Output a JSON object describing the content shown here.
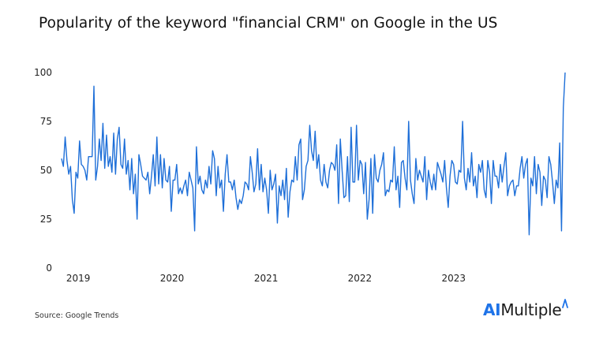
{
  "chart_data": {
    "type": "line",
    "title": "Popularity of the keyword \"financial CRM\" on Google in the US",
    "xlabel": "",
    "ylabel": "",
    "ylim": [
      0,
      100
    ],
    "yticks": [
      0,
      25,
      50,
      75,
      100
    ],
    "xticks": [
      "2019",
      "2020",
      "2021",
      "2022",
      "2023"
    ],
    "x_start": "2018-10-28",
    "x_interval_days": 7,
    "grid": false,
    "legend": "none",
    "series": [
      {
        "color": "#1e6fd8",
        "values": [
          56,
          52,
          67,
          55,
          48,
          52,
          35,
          28,
          49,
          46,
          65,
          53,
          52,
          50,
          45,
          57,
          57,
          57,
          93,
          45,
          52,
          66,
          55,
          74,
          51,
          68,
          52,
          57,
          49,
          69,
          48,
          66,
          72,
          53,
          51,
          66,
          48,
          55,
          40,
          56,
          38,
          48,
          25,
          58,
          53,
          47,
          46,
          45,
          49,
          38,
          47,
          58,
          42,
          67,
          43,
          58,
          41,
          56,
          45,
          44,
          52,
          29,
          45,
          45,
          53,
          38,
          41,
          38,
          42,
          45,
          37,
          49,
          45,
          41,
          19,
          62,
          43,
          47,
          40,
          38,
          45,
          41,
          52,
          43,
          60,
          56,
          37,
          52,
          41,
          45,
          29,
          48,
          58,
          44,
          44,
          40,
          45,
          36,
          30,
          35,
          33,
          37,
          44,
          43,
          40,
          57,
          49,
          39,
          43,
          61,
          40,
          53,
          39,
          46,
          40,
          28,
          50,
          40,
          43,
          48,
          23,
          42,
          37,
          45,
          35,
          51,
          26,
          39,
          45,
          44,
          57,
          45,
          63,
          66,
          35,
          40,
          52,
          55,
          73,
          60,
          55,
          70,
          51,
          58,
          45,
          42,
          53,
          44,
          41,
          50,
          54,
          53,
          50,
          63,
          33,
          66,
          50,
          36,
          37,
          57,
          34,
          72,
          44,
          44,
          73,
          45,
          55,
          53,
          38,
          54,
          25,
          35,
          56,
          28,
          58,
          46,
          44,
          50,
          53,
          59,
          37,
          40,
          39,
          45,
          44,
          62,
          40,
          47,
          31,
          54,
          55,
          46,
          40,
          75,
          45,
          38,
          33,
          56,
          45,
          50,
          47,
          44,
          57,
          35,
          50,
          44,
          40,
          48,
          40,
          54,
          51,
          48,
          44,
          55,
          41,
          31,
          47,
          55,
          53,
          44,
          43,
          50,
          49,
          75,
          46,
          40,
          51,
          44,
          59,
          42,
          47,
          36,
          53,
          49,
          55,
          40,
          36,
          55,
          49,
          33,
          55,
          47,
          47,
          41,
          53,
          44,
          52,
          59,
          37,
          42,
          44,
          45,
          37,
          42,
          42,
          51,
          57,
          46,
          53,
          56,
          17,
          46,
          42,
          57,
          38,
          53,
          49,
          32,
          47,
          45,
          36,
          57,
          53,
          44,
          33,
          45,
          41,
          64,
          19,
          82,
          100
        ]
      }
    ]
  },
  "footer": {
    "source": "Source: Google Trends",
    "logo_ai": "AI",
    "logo_rest": "Multiple"
  }
}
